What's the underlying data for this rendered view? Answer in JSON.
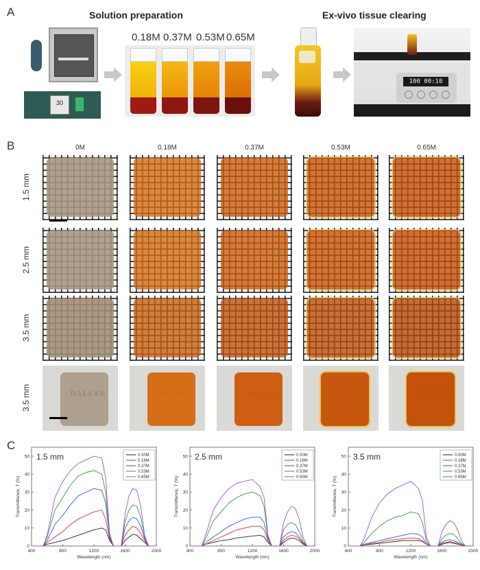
{
  "panelA": {
    "letter": "A",
    "title_left": "Solution preparation",
    "title_right": "Ex-vivo tissue clearing",
    "concentrations": [
      "0.18M",
      "0.37M",
      "0.53M",
      "0.65M"
    ],
    "device_readout": "100",
    "device_timer": "00:10",
    "heater_readout": "30"
  },
  "panelB": {
    "letter": "B",
    "columns": [
      "0M",
      "0.18M",
      "0.37M",
      "0.53M",
      "0.65M"
    ],
    "rows": [
      "1.5 mm",
      "2.5 mm",
      "3.5 mm",
      "3.5 mm"
    ],
    "logo_text": "DALLAS"
  },
  "panelC": {
    "letter": "C",
    "colors": {
      "0.00M": "#222222",
      "0.18M": "#e8262a",
      "0.37M": "#2a5bd7",
      "0.53M": "#2e9b3a",
      "0.65M": "#a64ad8"
    }
  },
  "chart_data": [
    {
      "type": "line",
      "title": "1.5 mm",
      "xlabel": "Wavelength (nm)",
      "ylabel": "Transmittance, T (%)",
      "xlim": [
        400,
        2000
      ],
      "ylim": [
        0,
        55
      ],
      "xticks": [
        400,
        800,
        1200,
        1600,
        2000
      ],
      "yticks": [
        0,
        10,
        20,
        30,
        40,
        50
      ],
      "legend": "top-right",
      "x": [
        400,
        550,
        600,
        700,
        800,
        900,
        1000,
        1100,
        1200,
        1300,
        1350,
        1400,
        1450,
        1550,
        1600,
        1650,
        1700,
        1750,
        1800,
        1850,
        1900,
        2000
      ],
      "series": [
        {
          "name": "0.00M",
          "values": [
            0,
            0,
            1,
            2,
            3,
            4.5,
            6,
            7.5,
            9,
            10,
            9,
            3,
            0,
            0,
            3,
            5,
            6.5,
            6,
            4,
            2,
            0,
            0
          ]
        },
        {
          "name": "0.18M",
          "values": [
            0,
            0,
            2,
            5,
            8,
            12,
            15,
            17,
            19,
            20,
            15,
            4,
            0,
            0,
            6,
            9,
            11,
            10,
            7,
            3,
            0,
            0
          ]
        },
        {
          "name": "0.37M",
          "values": [
            0,
            0,
            3,
            12,
            17,
            23,
            28,
            30,
            32,
            31,
            24,
            5,
            0,
            0,
            10,
            14,
            16,
            15,
            11,
            4,
            0,
            0
          ]
        },
        {
          "name": "0.53M",
          "values": [
            0,
            0,
            5,
            20,
            27,
            34,
            39,
            41,
            42,
            40,
            30,
            6,
            0,
            0,
            14,
            20,
            23,
            22,
            16,
            5,
            0,
            0
          ]
        },
        {
          "name": "0.65M",
          "values": [
            0,
            0,
            6,
            27,
            36,
            42,
            46,
            48,
            50,
            49,
            38,
            7,
            0,
            0,
            18,
            28,
            32,
            31,
            22,
            6,
            0,
            0
          ]
        }
      ]
    },
    {
      "type": "line",
      "title": "2.5 mm",
      "xlabel": "Wavelength (nm)",
      "ylabel": "Transmittance, T (%)",
      "xlim": [
        400,
        2000
      ],
      "ylim": [
        0,
        55
      ],
      "xticks": [
        400,
        800,
        1200,
        1600,
        2000
      ],
      "yticks": [
        0,
        10,
        20,
        30,
        40,
        50
      ],
      "legend": "top-right",
      "x": [
        400,
        550,
        600,
        700,
        800,
        900,
        1000,
        1100,
        1200,
        1300,
        1350,
        1400,
        1450,
        1550,
        1600,
        1650,
        1700,
        1750,
        1800,
        1850,
        1900,
        2000
      ],
      "series": [
        {
          "name": "0.00M",
          "values": [
            0,
            0,
            1,
            2,
            3,
            3.5,
            4.5,
            5,
            5.5,
            6,
            5,
            2,
            0,
            0,
            2,
            3.5,
            4.5,
            4,
            3,
            1,
            0,
            0
          ]
        },
        {
          "name": "0.18M",
          "values": [
            0,
            0,
            1,
            3,
            5,
            7,
            9,
            10,
            11,
            11,
            9,
            3,
            0,
            0,
            3,
            5,
            6,
            5.5,
            4,
            1.5,
            0,
            0
          ]
        },
        {
          "name": "0.37M",
          "values": [
            0,
            0,
            2,
            5,
            8,
            11,
            13,
            15,
            16,
            16,
            13,
            4,
            0,
            0,
            5,
            7,
            8,
            7.5,
            5,
            2,
            0,
            0
          ]
        },
        {
          "name": "0.53M",
          "values": [
            0,
            0,
            4,
            14,
            19,
            24,
            27,
            29,
            30,
            28,
            22,
            5,
            0,
            0,
            9,
            12,
            13,
            12,
            8,
            3,
            0,
            0
          ]
        },
        {
          "name": "0.65M",
          "values": [
            0,
            0,
            6,
            20,
            27,
            32,
            35,
            36,
            37,
            33,
            27,
            6,
            0,
            0,
            13,
            19,
            22,
            21,
            15,
            5,
            0,
            0
          ]
        }
      ]
    },
    {
      "type": "line",
      "title": "3.5 mm",
      "xlabel": "Wavelength (nm)",
      "ylabel": "Transmittance, T (%)",
      "xlim": [
        400,
        2000
      ],
      "ylim": [
        0,
        55
      ],
      "xticks": [
        400,
        800,
        1200,
        1600,
        2000
      ],
      "yticks": [
        0,
        10,
        20,
        30,
        40,
        50
      ],
      "legend": "top-right",
      "x": [
        400,
        550,
        600,
        700,
        800,
        900,
        1000,
        1100,
        1200,
        1300,
        1350,
        1400,
        1450,
        1550,
        1600,
        1650,
        1700,
        1750,
        1800,
        1850,
        1900,
        2000
      ],
      "series": [
        {
          "name": "0.00M",
          "values": [
            0,
            0,
            0.5,
            1,
            1.5,
            2,
            2.5,
            3,
            3,
            3,
            2.5,
            1,
            0,
            0,
            1,
            1.5,
            2,
            1.5,
            1,
            0.5,
            0,
            0
          ]
        },
        {
          "name": "0.18M",
          "values": [
            0,
            0,
            0.5,
            1.5,
            2,
            3,
            3.5,
            4,
            4.5,
            4,
            3,
            1,
            0,
            0,
            1.5,
            2,
            2.5,
            2,
            1.5,
            0.5,
            0,
            0
          ]
        },
        {
          "name": "0.37M",
          "values": [
            0,
            0,
            1,
            2,
            3,
            4,
            5,
            6,
            7,
            6.5,
            5,
            1.5,
            0,
            0,
            2,
            3,
            3.5,
            3,
            2,
            1,
            0,
            0
          ]
        },
        {
          "name": "0.53M",
          "values": [
            0,
            0,
            2,
            7,
            11,
            14,
            16,
            17,
            19,
            18,
            13,
            3,
            0,
            0,
            4,
            6,
            7,
            6.5,
            4,
            1.5,
            0,
            0
          ]
        },
        {
          "name": "0.65M",
          "values": [
            0,
            0,
            4,
            16,
            24,
            29,
            32,
            34,
            36,
            32,
            25,
            5,
            0,
            0,
            8,
            12,
            14,
            13,
            9,
            3,
            0,
            0
          ]
        }
      ]
    }
  ]
}
